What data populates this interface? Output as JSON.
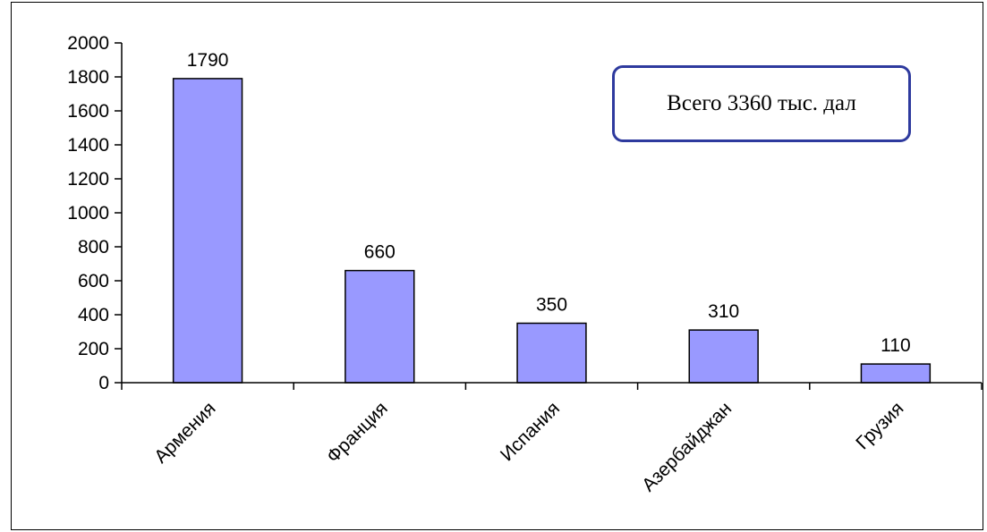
{
  "chart_data": {
    "type": "bar",
    "categories": [
      "Армения",
      "Франция",
      "Испания",
      "Азербайджан",
      "Грузия"
    ],
    "values": [
      1790,
      660,
      350,
      310,
      110
    ],
    "data_labels": [
      "1790",
      "660",
      "350",
      "310",
      "110"
    ],
    "title": "",
    "xlabel": "",
    "ylabel": "",
    "ylim": [
      0,
      2000
    ],
    "yticks": [
      0,
      200,
      400,
      600,
      800,
      1000,
      1200,
      1400,
      1600,
      1800,
      2000
    ],
    "ytick_labels": [
      "0",
      "200",
      "400",
      "600",
      "800",
      "1000",
      "1200",
      "1400",
      "1600",
      "1800",
      "2000"
    ],
    "grid": false,
    "legend": false,
    "bar_color": "#9999ff",
    "bar_edge_color": "#000000",
    "annotation": "Всего 3360 тыс. дал"
  },
  "callout": {
    "text": "Всего 3360 тыс. дал",
    "border_color": "#2e3a9e"
  }
}
